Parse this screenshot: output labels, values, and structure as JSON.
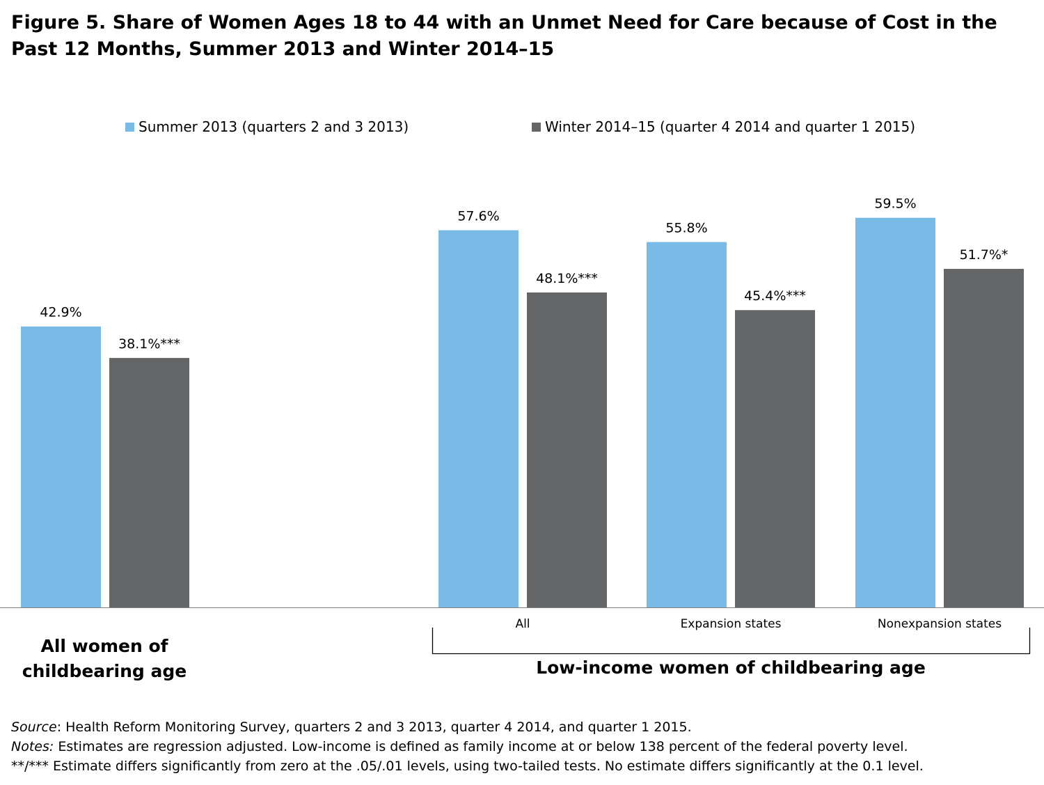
{
  "title": "Figure 5. Share of Women Ages 18 to 44 with an Unmet Need for Care because of Cost in the Past 12 Months, Summer 2013 and Winter 2014–15",
  "colors": {
    "summer": "#79bbe6",
    "winter": "#646567",
    "axis": "#7f7f7f"
  },
  "chart_data": {
    "type": "bar",
    "title": "Figure 5. Share of Women Ages 18 to 44 with an Unmet Need for Care because of Cost in the Past 12 Months, Summer 2013 and Winter 2014–15",
    "categories": [
      "",
      "All",
      "Expansion states",
      "Nonexpansion states"
    ],
    "series": [
      {
        "name": "Summer 2013 (quarters 2 and 3 2013)",
        "values": [
          42.9,
          57.6,
          55.8,
          59.5
        ],
        "labels": [
          "42.9%",
          "57.6%",
          "55.8%",
          "59.5%"
        ]
      },
      {
        "name": "Winter 2014–15 (quarter 4 2014 and quarter 1 2015)",
        "values": [
          38.1,
          48.1,
          45.4,
          51.7
        ],
        "labels": [
          "38.1%***",
          "48.1%***",
          "45.4%***",
          "51.7%*"
        ]
      }
    ],
    "ylim": [
      0,
      62
    ],
    "grid": false,
    "legend": "top",
    "group_labels": [
      "All women of childbearing age",
      "Low-income women of childbearing age"
    ]
  },
  "footnotes": {
    "source_label": "Source",
    "source_text": ": Health Reform Monitoring Survey, quarters 2 and 3 2013, quarter 4 2014, and quarter 1 2015.",
    "notes_label": "Notes:",
    "notes_text": " Estimates are regression adjusted.  Low-income is defined as family income at or below 138 percent of the federal poverty level.",
    "significance_text": "**/*** Estimate differs significantly from zero at the .05/.01 levels, using two-tailed tests.  No estimate differs significantly at the 0.1 level."
  }
}
